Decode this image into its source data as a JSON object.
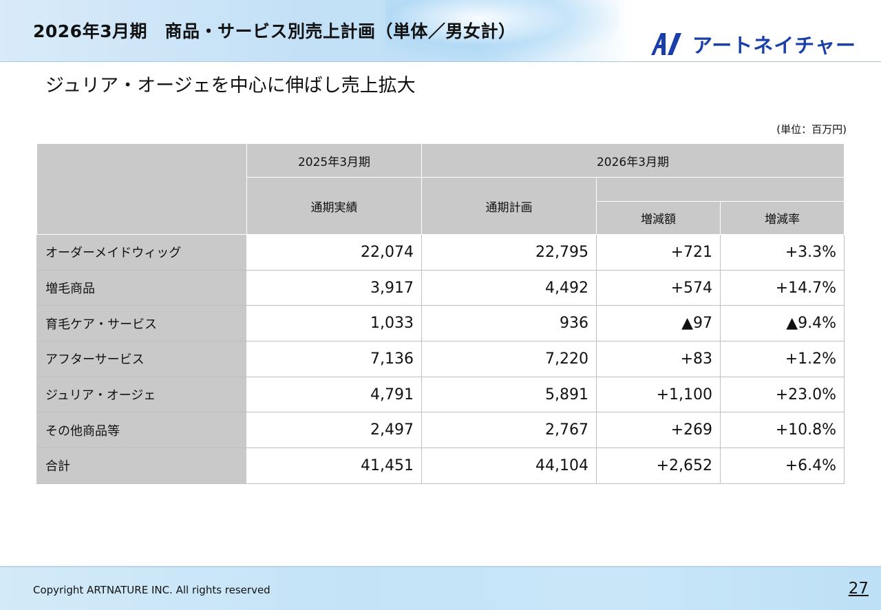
{
  "header": {
    "title": "2026年3月期　商品・サービス別売上計画（単体／男女計）",
    "logo_text": "アートネイチャー",
    "logo_mark": "artnature-logo-icon"
  },
  "subtitle": "ジュリア・オージェを中心に伸ばし売上拡大",
  "unit": "(単位：百万円)",
  "table": {
    "period_prev": "2025年3月期",
    "period_curr": "2026年3月期",
    "col_actual": "通期実績",
    "col_plan": "通期計画",
    "col_diff": "増減額",
    "col_rate": "増減率",
    "rows": [
      {
        "label": "オーダーメイドウィッグ",
        "actual": "22,074",
        "plan": "22,795",
        "diff": "+721",
        "rate": "+3.3%"
      },
      {
        "label": "増毛商品",
        "actual": "3,917",
        "plan": "4,492",
        "diff": "+574",
        "rate": "+14.7%"
      },
      {
        "label": "育毛ケア・サービス",
        "actual": "1,033",
        "plan": "936",
        "diff": "▲97",
        "rate": "▲9.4%"
      },
      {
        "label": "アフターサービス",
        "actual": "7,136",
        "plan": "7,220",
        "diff": "+83",
        "rate": "+1.2%"
      },
      {
        "label": "ジュリア・オージェ",
        "actual": "4,791",
        "plan": "5,891",
        "diff": "+1,100",
        "rate": "+23.0%"
      },
      {
        "label": "その他商品等",
        "actual": "2,497",
        "plan": "2,767",
        "diff": "+269",
        "rate": "+10.8%"
      },
      {
        "label": "合計",
        "actual": "41,451",
        "plan": "44,104",
        "diff": "+2,652",
        "rate": "+6.4%"
      }
    ]
  },
  "footer": {
    "copyright": "Copyright ARTNATURE INC. All rights reserved",
    "page_number": "27"
  }
}
